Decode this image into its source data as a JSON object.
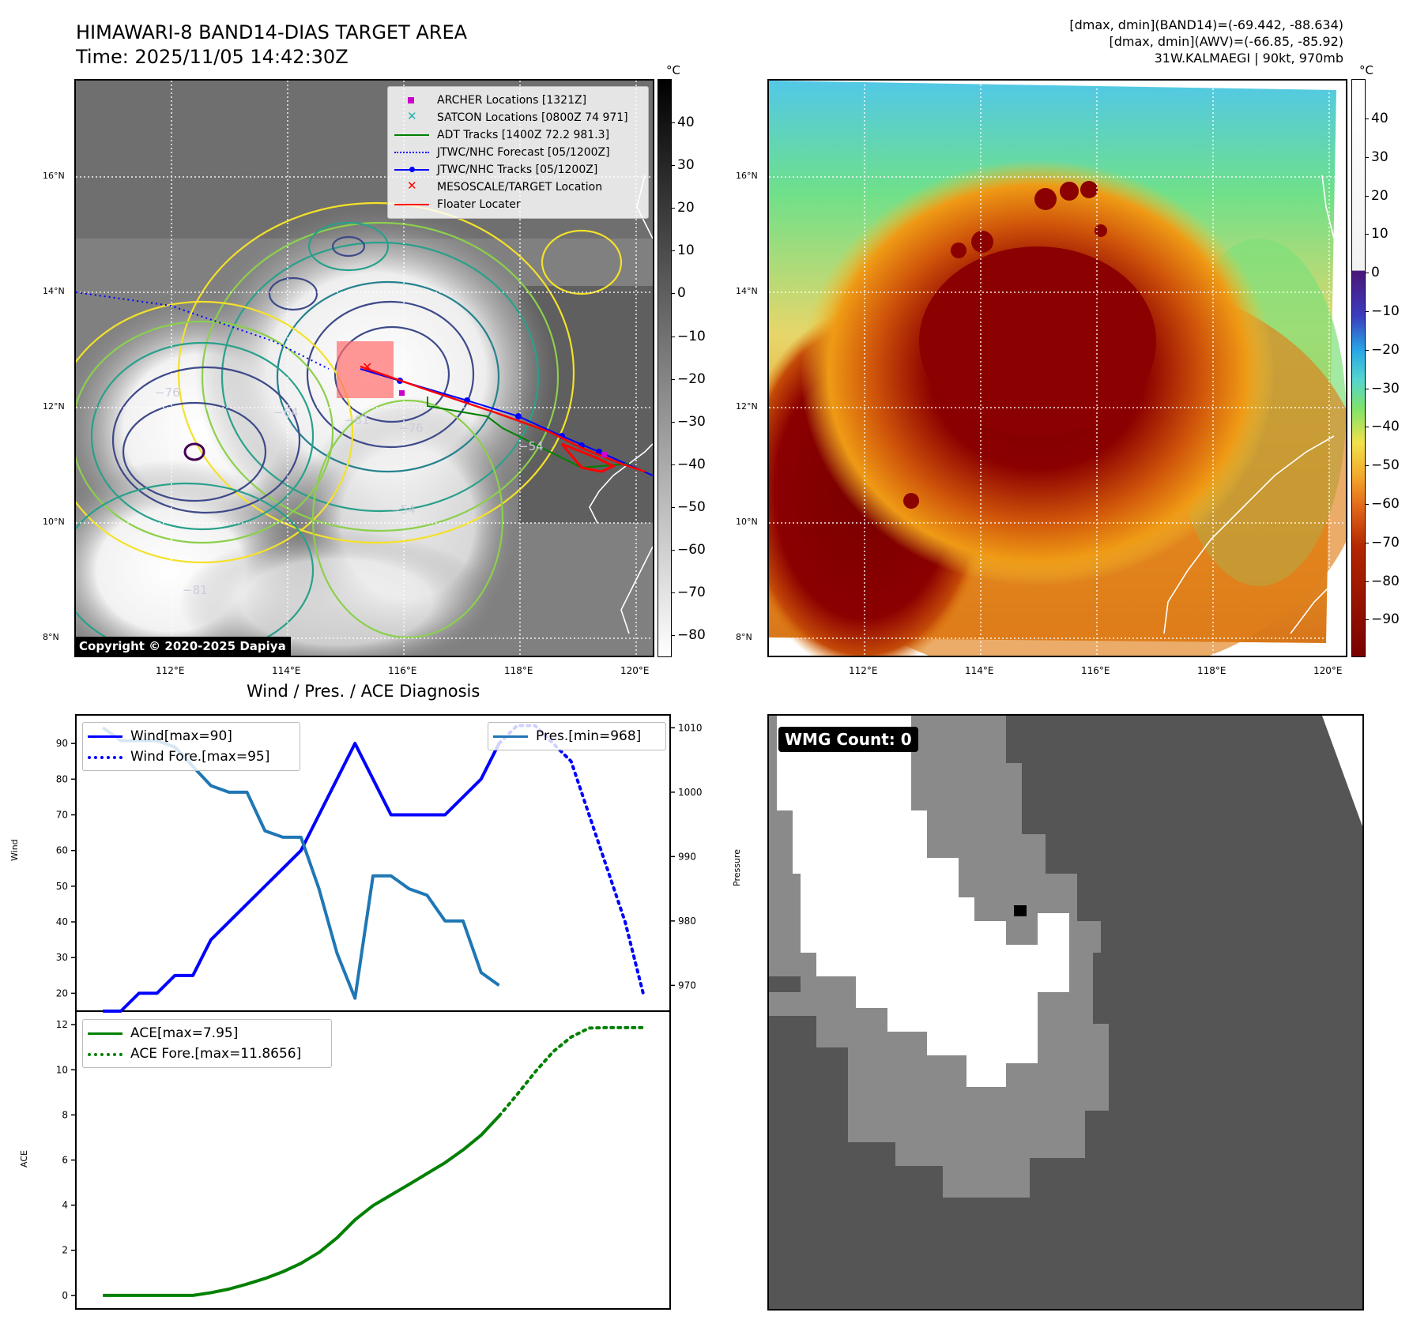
{
  "header": {
    "title": "HIMAWARI-8 BAND14-DIAS TARGET AREA",
    "time": "Time: 2025/11/05 14:42:30Z",
    "stats_band14": "[dmax, dmin](BAND14)=(-69.442, -88.634)",
    "stats_awv": "[dmax, dmin](AWV)=(-66.85, -85.92)",
    "storm": "31W.KALMAEGI | 90kt, 970mb"
  },
  "map_axes": {
    "lat_labels": [
      "16°N",
      "14°N",
      "12°N",
      "10°N",
      "8°N"
    ],
    "lon_labels": [
      "112°E",
      "114°E",
      "116°E",
      "118°E",
      "120°E"
    ]
  },
  "colorbar_left": {
    "unit": "°C",
    "ticks": [
      "40",
      "30",
      "20",
      "10",
      "0",
      "−10",
      "−20",
      "−30",
      "−40",
      "−50",
      "−60",
      "−70",
      "−80"
    ]
  },
  "colorbar_right": {
    "unit": "°C",
    "ticks": [
      "40",
      "30",
      "20",
      "10",
      "0",
      "−10",
      "−20",
      "−30",
      "−40",
      "−50",
      "−60",
      "−70",
      "−80",
      "−90"
    ]
  },
  "contour_labels": [
    "−81",
    "−76",
    "−54",
    "−54",
    "−64",
    "−76",
    "−81"
  ],
  "map_legend": [
    {
      "label": "ARCHER Locations [1321Z]",
      "color": "#cc00cc",
      "style": "square"
    },
    {
      "label": "SATCON Locations [0800Z 74 971]",
      "color": "#20b2aa",
      "style": "x"
    },
    {
      "label": "ADT Tracks [1400Z 72.2 981.3]",
      "color": "#008000",
      "style": "line"
    },
    {
      "label": "JTWC/NHC Forecast [05/1200Z]",
      "color": "#0000ff",
      "style": "dotted"
    },
    {
      "label": "JTWC/NHC Tracks [05/1200Z]",
      "color": "#0000ff",
      "style": "line-dot"
    },
    {
      "label": "MESOSCALE/TARGET Location",
      "color": "#ff0000",
      "style": "x"
    },
    {
      "label": "Floater Locater",
      "color": "#ff0000",
      "style": "line"
    }
  ],
  "copyright": "Copyright © 2020-2025 Dapiya",
  "wind_panel": {
    "title": "Wind / Pres. / ACE Diagnosis",
    "ylabel_left": "Wind",
    "ylabel_right": "Pressure",
    "legend_left": [
      "Wind[max=90]",
      "Wind Fore.[max=95]"
    ],
    "legend_right": [
      "Pres.[min=968]"
    ]
  },
  "ace_panel": {
    "ylabel": "ACE",
    "legend": [
      "ACE[max=7.95]",
      "ACE Fore.[max=11.8656]"
    ]
  },
  "wmg": {
    "label": "WMG Count: 0"
  },
  "colors": {
    "wind": "#0000ff",
    "pressure": "#1f77b4",
    "ace": "#008000"
  },
  "chart_data": [
    {
      "type": "line",
      "title": "Wind / Pres. / ACE Diagnosis",
      "ylabel": "Wind",
      "ylim": [
        15,
        98
      ],
      "yticks": [
        20,
        30,
        40,
        50,
        60,
        70,
        80,
        90
      ],
      "x": [
        0,
        1,
        2,
        3,
        4,
        5,
        6,
        7,
        8,
        9,
        10,
        11,
        12,
        13,
        14,
        15,
        16,
        17,
        18,
        19,
        20,
        21,
        22,
        23,
        24,
        25,
        26,
        27,
        28,
        29,
        30
      ],
      "series": [
        {
          "name": "Wind[max=90]",
          "style": "solid",
          "color": "#0000ff",
          "x": [
            0,
            1,
            2,
            3,
            4,
            5,
            6,
            7,
            8,
            9,
            10,
            11,
            12,
            13,
            14,
            15,
            16,
            17,
            18,
            19,
            20,
            21,
            22
          ],
          "values": [
            15,
            15,
            20,
            20,
            25,
            25,
            35,
            40,
            45,
            50,
            55,
            60,
            70,
            80,
            90,
            80,
            70,
            70,
            70,
            70,
            75,
            80,
            90
          ]
        },
        {
          "name": "Wind Fore.[max=95]",
          "style": "dotted",
          "color": "#0000ff",
          "x": [
            22,
            23,
            24,
            25,
            26,
            27,
            28,
            29,
            30
          ],
          "values": [
            90,
            95,
            95,
            90,
            85,
            70,
            55,
            40,
            20
          ]
        }
      ]
    },
    {
      "type": "line",
      "ylabel": "Pressure",
      "ylim": [
        966,
        1012
      ],
      "yticks": [
        970,
        980,
        990,
        1000,
        1010
      ],
      "series": [
        {
          "name": "Pres.[min=968]",
          "style": "solid",
          "color": "#1f77b4",
          "x": [
            0,
            1,
            2,
            3,
            4,
            5,
            6,
            7,
            8,
            9,
            10,
            11,
            12,
            13,
            14,
            15,
            16,
            17,
            18,
            19,
            20,
            21,
            22
          ],
          "values": [
            1010,
            1008,
            1008,
            1008,
            1007,
            1004,
            1001,
            1000,
            1000,
            994,
            993,
            993,
            985,
            975,
            968,
            987,
            987,
            985,
            984,
            980,
            980,
            972,
            970
          ]
        }
      ]
    },
    {
      "type": "line",
      "ylabel": "ACE",
      "ylim": [
        -0.6,
        12.6
      ],
      "yticks": [
        0,
        2,
        4,
        6,
        8,
        10,
        12
      ],
      "series": [
        {
          "name": "ACE[max=7.95]",
          "style": "solid",
          "color": "#008000",
          "x": [
            0,
            1,
            2,
            3,
            4,
            5,
            6,
            7,
            8,
            9,
            10,
            11,
            12,
            13,
            14,
            15,
            16,
            17,
            18,
            19,
            20,
            21,
            22
          ],
          "values": [
            0,
            0,
            0,
            0,
            0,
            0,
            0.12,
            0.28,
            0.5,
            0.75,
            1.05,
            1.42,
            1.9,
            2.55,
            3.35,
            3.98,
            4.45,
            4.92,
            5.4,
            5.88,
            6.45,
            7.1,
            7.95
          ]
        },
        {
          "name": "ACE Fore.[max=11.8656]",
          "style": "dotted",
          "color": "#008000",
          "x": [
            22,
            23,
            24,
            25,
            26,
            27,
            28,
            29,
            30
          ],
          "values": [
            7.95,
            8.9,
            9.9,
            10.8,
            11.45,
            11.85,
            11.87,
            11.87,
            11.87
          ]
        }
      ]
    }
  ]
}
